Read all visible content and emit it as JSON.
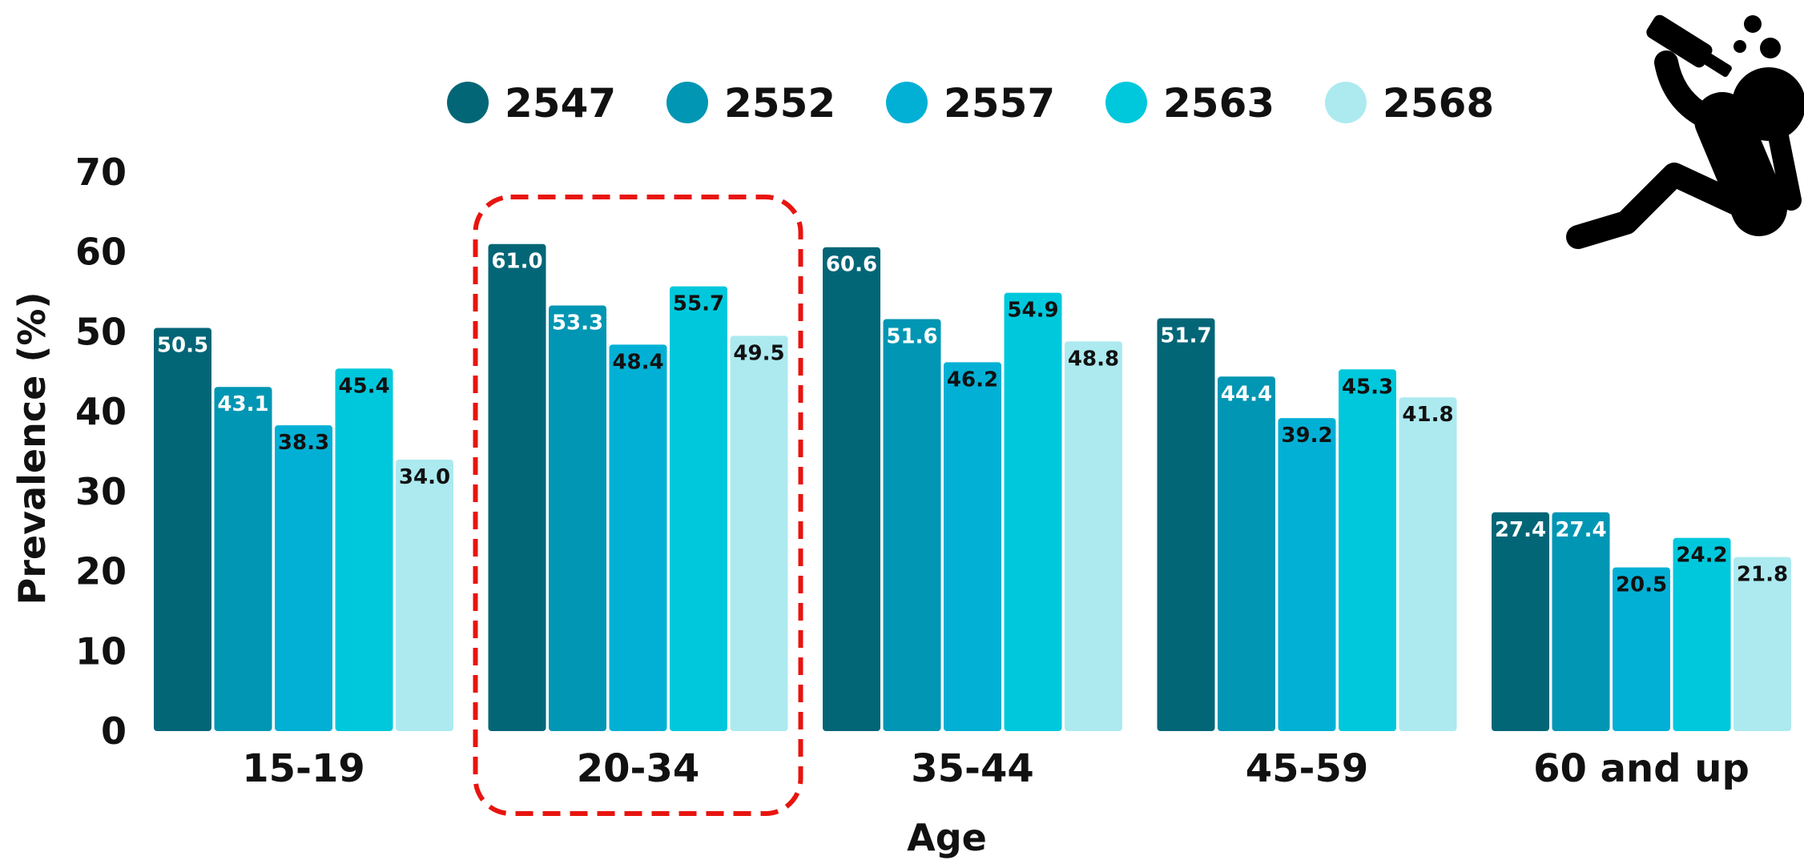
{
  "chart_data": {
    "type": "bar",
    "title": "",
    "xlabel": "Age",
    "ylabel": "Prevalence (%)",
    "ylim": [
      0,
      70
    ],
    "yticks": [
      0,
      10,
      20,
      30,
      40,
      50,
      60,
      70
    ],
    "grid": false,
    "legend_position": "top-center",
    "categories": [
      "15-19",
      "20-34",
      "35-44",
      "45-59",
      "60 and up"
    ],
    "series": [
      {
        "name": "2547",
        "color": "#036677",
        "label_color": "#ffffff",
        "values": [
          50.5,
          61.0,
          60.6,
          51.7,
          27.4
        ],
        "labels": [
          "50.5",
          "61.0",
          "60.6",
          "51.7",
          "27.4"
        ]
      },
      {
        "name": "2552",
        "color": "#0196B3",
        "label_color": "#ffffff",
        "values": [
          43.1,
          53.3,
          51.6,
          44.4,
          27.4
        ],
        "labels": [
          "43.1",
          "53.3",
          "51.6",
          "44.4",
          "27.4"
        ]
      },
      {
        "name": "2557",
        "color": "#03B0D5",
        "label_color": "#111111",
        "values": [
          38.3,
          48.4,
          46.2,
          39.2,
          20.5
        ],
        "labels": [
          "38.3",
          "48.4",
          "46.2",
          "39.2",
          "20.5"
        ]
      },
      {
        "name": "2563",
        "color": "#00C8DC",
        "label_color": "#111111",
        "values": [
          45.4,
          55.7,
          54.9,
          45.3,
          24.2
        ],
        "labels": [
          "45.4",
          "55.7",
          "54.9",
          "45.3",
          "24.2"
        ]
      },
      {
        "name": "2568",
        "color": "#ACEAF0",
        "label_color": "#111111",
        "values": [
          34.0,
          49.5,
          48.8,
          41.8,
          21.8
        ],
        "labels": [
          "34.0",
          "49.5",
          "48.8",
          "41.8",
          "21.8"
        ]
      }
    ],
    "annotations": [
      {
        "type": "highlight-box",
        "category": "20-34",
        "style": "dashed",
        "color": "#e8140f"
      }
    ],
    "icon": "person-drinking-icon"
  }
}
